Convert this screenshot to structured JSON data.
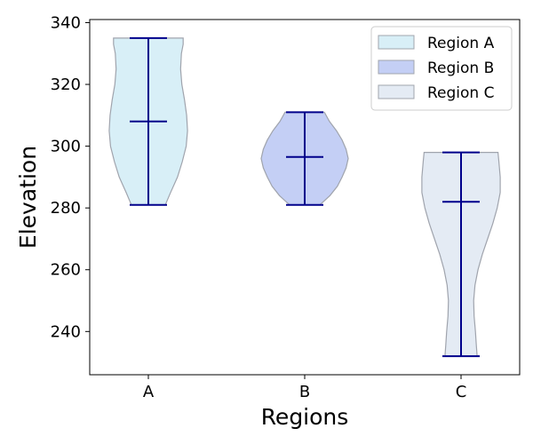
{
  "chart_data": {
    "type": "violin",
    "title": "",
    "xlabel": "Regions",
    "ylabel": "Elevation",
    "categories": [
      "A",
      "B",
      "C"
    ],
    "ylim": [
      226,
      341
    ],
    "yticks": [
      240,
      260,
      280,
      300,
      320,
      340
    ],
    "grid": false,
    "legend_position": "top-right",
    "series": [
      {
        "name": "Region A",
        "category": "A",
        "min": 281,
        "median": 308,
        "max": 335,
        "fill": "#d8eff7",
        "density": [
          [
            281,
            0.39
          ],
          [
            285,
            0.51
          ],
          [
            290,
            0.67
          ],
          [
            295,
            0.78
          ],
          [
            300,
            0.87
          ],
          [
            305,
            0.9
          ],
          [
            310,
            0.88
          ],
          [
            315,
            0.83
          ],
          [
            320,
            0.77
          ],
          [
            325,
            0.74
          ],
          [
            330,
            0.76
          ],
          [
            333,
            0.8
          ],
          [
            335,
            0.8
          ]
        ]
      },
      {
        "name": "Region B",
        "category": "B",
        "min": 281,
        "median": 296.5,
        "max": 311,
        "fill": "#c4cff5",
        "density": [
          [
            281,
            0.35
          ],
          [
            284,
            0.58
          ],
          [
            287,
            0.75
          ],
          [
            290,
            0.86
          ],
          [
            293,
            0.95
          ],
          [
            296,
            1.0
          ],
          [
            299,
            0.95
          ],
          [
            302,
            0.86
          ],
          [
            305,
            0.73
          ],
          [
            308,
            0.57
          ],
          [
            311,
            0.45
          ]
        ]
      },
      {
        "name": "Region C",
        "category": "C",
        "min": 232,
        "median": 282,
        "max": 298,
        "fill": "#e4ebf4",
        "density": [
          [
            232,
            0.37
          ],
          [
            236,
            0.35
          ],
          [
            240,
            0.33
          ],
          [
            245,
            0.3
          ],
          [
            250,
            0.29
          ],
          [
            255,
            0.32
          ],
          [
            260,
            0.39
          ],
          [
            265,
            0.49
          ],
          [
            270,
            0.61
          ],
          [
            275,
            0.73
          ],
          [
            280,
            0.83
          ],
          [
            285,
            0.9
          ],
          [
            290,
            0.9
          ],
          [
            295,
            0.87
          ],
          [
            298,
            0.85
          ]
        ]
      }
    ],
    "colors": {
      "whisker": "#00008b",
      "violin_edge": "#a0a4ad"
    }
  }
}
